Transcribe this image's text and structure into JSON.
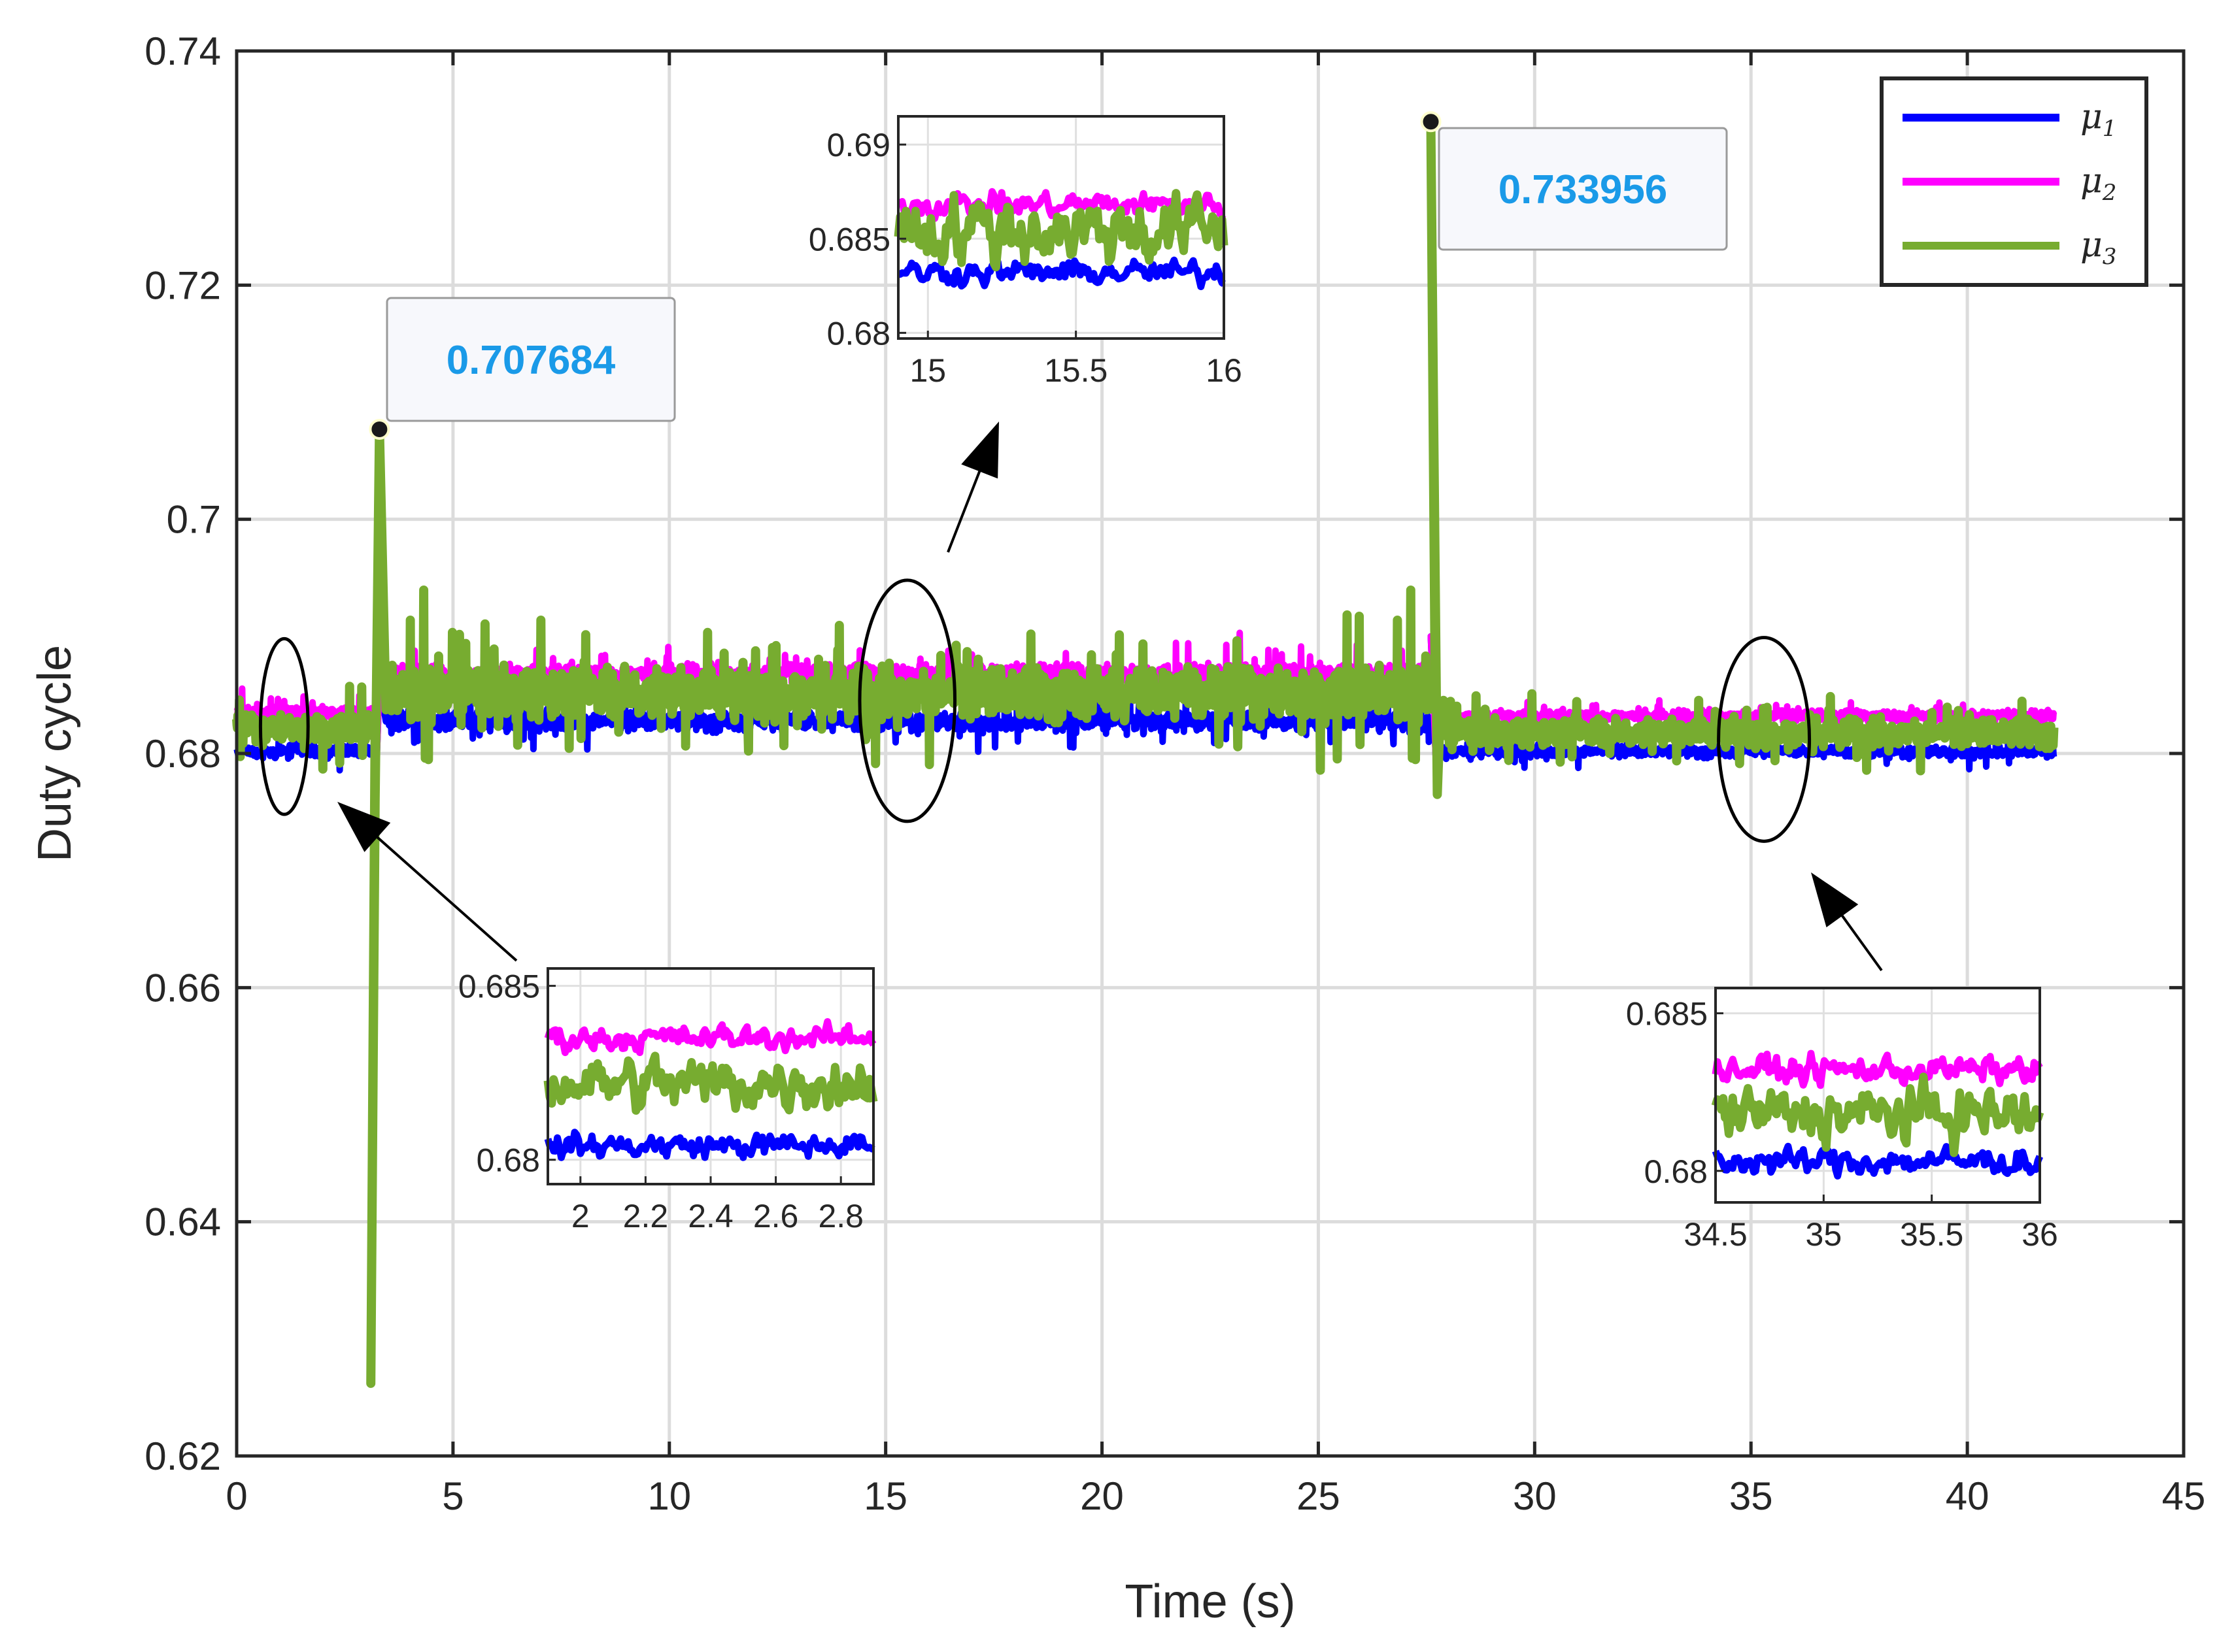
{
  "chart_data": {
    "type": "line",
    "xlabel": "Time (s)",
    "ylabel": "Duty cycle",
    "xlim": [
      0,
      45
    ],
    "ylim": [
      0.62,
      0.74
    ],
    "xticks": [
      0,
      5,
      10,
      15,
      20,
      25,
      30,
      35,
      40,
      45
    ],
    "xtick_labels": [
      "0",
      "5",
      "10",
      "15",
      "20",
      "25",
      "30",
      "35",
      "40",
      "45"
    ],
    "yticks": [
      0.62,
      0.64,
      0.66,
      0.68,
      0.7,
      0.72,
      0.74
    ],
    "ytick_labels": [
      "0.62",
      "0.64",
      "0.66",
      "0.68",
      "0.7",
      "0.72",
      "0.74"
    ],
    "grid": true,
    "legend_position": "top-right",
    "series": [
      {
        "name": "μ1",
        "legend_base": "μ",
        "legend_sub": "1",
        "color": "#0000ff",
        "segments": [
          {
            "t": [
              0,
              3.2
            ],
            "mean": 0.6802,
            "noise": 0.0007
          },
          {
            "t": [
              3.45,
              27.7
            ],
            "mean": 0.6828,
            "noise": 0.0012
          },
          {
            "t": [
              27.8,
              42
            ],
            "mean": 0.6802,
            "noise": 0.0007
          }
        ]
      },
      {
        "name": "μ2",
        "legend_base": "μ",
        "legend_sub": "2",
        "color": "#ff00ff",
        "segments": [
          {
            "t": [
              0,
              3.2
            ],
            "mean": 0.6835,
            "noise": 0.0007
          },
          {
            "t": [
              3.45,
              27.7
            ],
            "mean": 0.6868,
            "noise": 0.0012
          },
          {
            "t": [
              27.8,
              42
            ],
            "mean": 0.6832,
            "noise": 0.0007
          }
        ]
      },
      {
        "name": "μ3",
        "legend_base": "μ",
        "legend_sub": "3",
        "color": "#77ac30",
        "segments": [
          {
            "t": [
              0,
              3.2
            ],
            "mean": 0.6822,
            "noise": 0.0016
          },
          {
            "t": [
              3.45,
              27.7
            ],
            "mean": 0.6852,
            "noise": 0.003
          },
          {
            "t": [
              27.8,
              42
            ],
            "mean": 0.6818,
            "noise": 0.0016
          }
        ]
      }
    ],
    "transients": [
      {
        "t": 3.1,
        "min": 0.6262
      },
      {
        "t": 3.3,
        "max": 0.707684
      },
      {
        "t": 27.6,
        "max": 0.733956
      },
      {
        "t": 27.75,
        "min": 0.6765
      }
    ],
    "annotations": [
      {
        "x": 3.3,
        "y": 0.707684,
        "label": "0.707684"
      },
      {
        "x": 27.6,
        "y": 0.733956,
        "label": "0.733956"
      }
    ],
    "highlight_ellipses": [
      {
        "cx": 1.1,
        "cy": 0.6823,
        "rx": 0.55,
        "ry": 0.0075
      },
      {
        "cx": 15.5,
        "cy": 0.6845,
        "rx": 1.1,
        "ry": 0.0103
      },
      {
        "cx": 35.3,
        "cy": 0.6812,
        "rx": 1.05,
        "ry": 0.0087
      }
    ],
    "insets": [
      {
        "id": "inset-1",
        "xlim": [
          1.9,
          2.9
        ],
        "ylim": [
          0.6793,
          0.6855
        ],
        "xticks": [
          2,
          2.2,
          2.4,
          2.6,
          2.8
        ],
        "xtick_labels": [
          "2",
          "2.2",
          "2.4",
          "2.6",
          "2.8"
        ],
        "yticks": [
          0.68,
          0.685
        ],
        "ytick_labels": [
          "0.68",
          "0.685"
        ],
        "means": [
          0.6804,
          0.6835,
          0.6822
        ],
        "noise": [
          0.0005,
          0.0005,
          0.0011
        ]
      },
      {
        "id": "inset-2",
        "xlim": [
          14.9,
          16
        ],
        "ylim": [
          0.6797,
          0.6915
        ],
        "xticks": [
          15,
          15.5,
          16
        ],
        "xtick_labels": [
          "15",
          "15.5",
          "16"
        ],
        "yticks": [
          0.68,
          0.685,
          0.69
        ],
        "ytick_labels": [
          "0.68",
          "0.685",
          "0.69"
        ],
        "means": [
          0.6832,
          0.6868,
          0.6855
        ],
        "noise": [
          0.0009,
          0.0009,
          0.0026
        ]
      },
      {
        "id": "inset-3",
        "xlim": [
          34.5,
          36
        ],
        "ylim": [
          0.679,
          0.6858
        ],
        "xticks": [
          34.5,
          35,
          35.5,
          36
        ],
        "xtick_labels": [
          "34.5",
          "35",
          "35.5",
          "36"
        ],
        "yticks": [
          0.68,
          0.685
        ],
        "ytick_labels": [
          "0.68",
          "0.685"
        ],
        "means": [
          0.6803,
          0.6832,
          0.6818
        ],
        "noise": [
          0.0006,
          0.0006,
          0.0012
        ]
      }
    ]
  }
}
